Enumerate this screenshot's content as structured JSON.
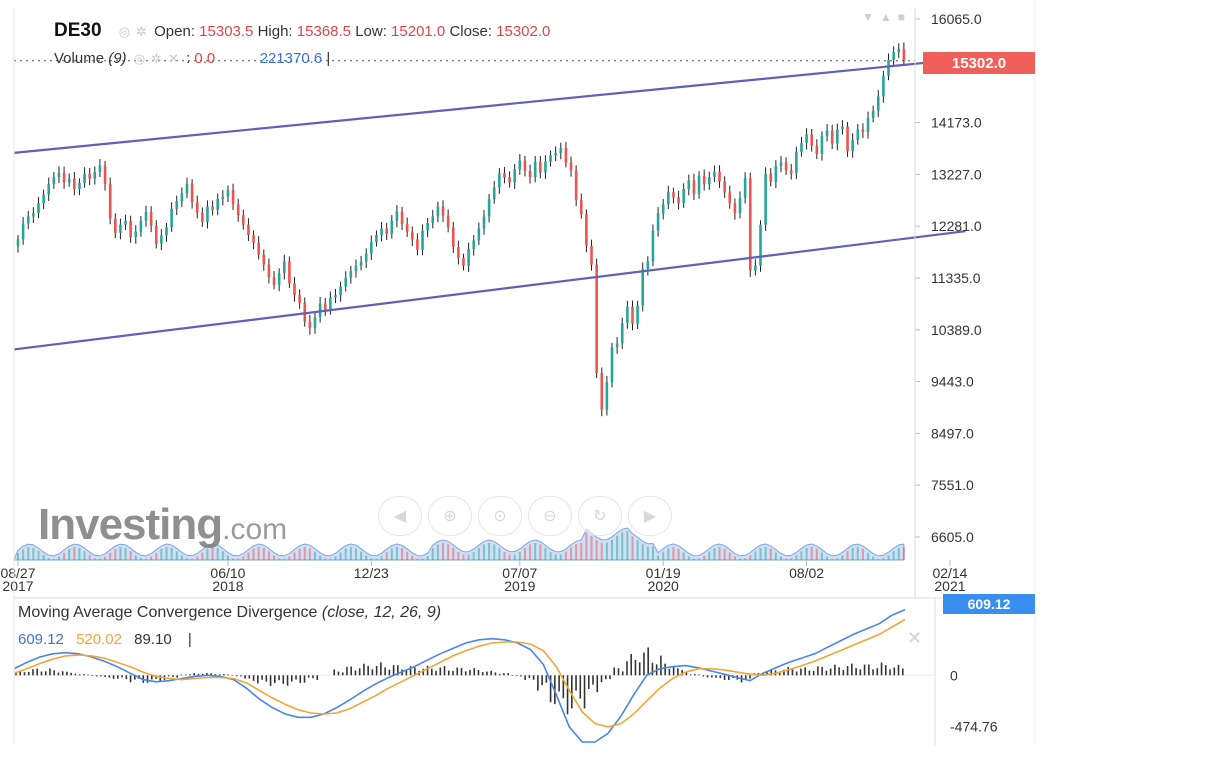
{
  "header": {
    "symbol": "DE30",
    "open_label": "Open:",
    "open": "15303.5",
    "high_label": "High:",
    "high": "15368.5",
    "low_label": "Low:",
    "low": "15201.0",
    "close_label": "Close:",
    "close": "15302.0",
    "volume_label": "Volume",
    "volume_period": "(9)",
    "volume_value": "0.0",
    "volume_ma": "221370.6"
  },
  "watermark": {
    "text": "Investing",
    "suffix": ".com"
  },
  "last_price_tag": "15302.0",
  "macd": {
    "legend_name": "Moving Average Convergence Divergence",
    "legend_params": "(close, 12, 26, 9)",
    "macd_value": "609.12",
    "signal_value": "520.02",
    "hist_value": "89.10",
    "tag": "609.12",
    "axis_ticks": [
      "0",
      "-474.76"
    ]
  },
  "colors": {
    "up": "#26a69a",
    "down": "#ef5350",
    "wick": "#222222",
    "channel": "#6060b8",
    "macd_line": "#4a86e8",
    "signal_line": "#f2a53a",
    "volume_area": "#a8c4ec",
    "price_tag": "#f0605a",
    "macd_tag": "#3a8ef0"
  },
  "toolbar_icons": [
    "arrow-left-icon",
    "zoom-in-icon",
    "zoom-reset-icon",
    "zoom-out-icon",
    "refresh-icon",
    "arrow-right-icon"
  ],
  "chart_data": [
    {
      "type": "candlestick",
      "title": "DE30",
      "y_ticks": [
        16065.0,
        14173.0,
        13227.0,
        12281.0,
        11335.0,
        10389.0,
        9443.0,
        8497.0,
        7551.0,
        6605.0
      ],
      "y_tick_labels": [
        "16065.0",
        "14173.0",
        "13227.0",
        "12281.0",
        "11335.0",
        "10389.0",
        "9443.0",
        "8497.0",
        "7551.0",
        "6605.0"
      ],
      "ylim": [
        5900,
        16400
      ],
      "x_tick_labels": [
        {
          "line1": "08/27",
          "line2": "2017",
          "i": 0
        },
        {
          "line1": "06/10",
          "line2": "2018",
          "i": 41
        },
        {
          "line1": "12/23",
          "line2": "",
          "i": 69
        },
        {
          "line1": "07/07",
          "line2": "2019",
          "i": 98
        },
        {
          "line1": "01/19",
          "line2": "2020",
          "i": 126
        },
        {
          "line1": "08/02",
          "line2": "",
          "i": 154
        },
        {
          "line1": "02/14",
          "line2": "2021",
          "i": 182
        }
      ],
      "closes": [
        12040,
        12330,
        12460,
        12520,
        12700,
        12860,
        13050,
        13180,
        13260,
        13080,
        13150,
        12960,
        13070,
        13240,
        13150,
        13270,
        13390,
        13050,
        12420,
        12160,
        12310,
        12380,
        12080,
        12180,
        12380,
        12540,
        12290,
        11960,
        12110,
        12260,
        12600,
        12740,
        12880,
        13050,
        12720,
        12530,
        12360,
        12640,
        12580,
        12780,
        12820,
        12940,
        12680,
        12480,
        12310,
        12120,
        11980,
        11760,
        11580,
        11350,
        11210,
        11420,
        11640,
        11240,
        11020,
        10880,
        10540,
        10420,
        10620,
        10870,
        10760,
        10980,
        11020,
        11180,
        11340,
        11460,
        11560,
        11630,
        11780,
        11990,
        12120,
        12240,
        12140,
        12380,
        12550,
        12320,
        12180,
        12040,
        11850,
        12200,
        12340,
        12460,
        12640,
        12480,
        12260,
        11900,
        11700,
        11560,
        11860,
        12020,
        12240,
        12460,
        12780,
        12990,
        13250,
        13170,
        13080,
        13320,
        13480,
        13290,
        13180,
        13460,
        13260,
        13460,
        13580,
        13620,
        13710,
        13440,
        13300,
        12760,
        12500,
        11920,
        11580,
        9600,
        8930,
        9430,
        10070,
        10140,
        10510,
        10810,
        10500,
        10830,
        11500,
        11640,
        12200,
        12520,
        12680,
        12900,
        12810,
        12700,
        12960,
        13120,
        12870,
        13200,
        13050,
        13180,
        13280,
        13100,
        12900,
        12700,
        12520,
        12800,
        13160,
        11470,
        11560,
        12310,
        13240,
        13090,
        13380,
        13450,
        13300,
        13250,
        13640,
        13800,
        13960,
        13750,
        13600,
        13930,
        14030,
        13790,
        14050,
        14100,
        13650,
        13860,
        14050,
        14000,
        14260,
        14390,
        14650,
        15030,
        15320,
        15460,
        15520,
        15302
      ],
      "channel_upper": {
        "from": {
          "i": 0,
          "price": 13620
        },
        "to": {
          "i": 194,
          "price": 15420
        }
      },
      "channel_lower": {
        "from": {
          "i": 0,
          "price": 10030
        },
        "to": {
          "i": 185,
          "price": 12190
        }
      },
      "last_price": 15302.0
    },
    {
      "type": "line",
      "title": "Moving Average Convergence Divergence",
      "series": [
        {
          "name": "MACD",
          "values": [
            60,
            120,
            170,
            200,
            210,
            200,
            170,
            130,
            80,
            20,
            -40,
            -60,
            -50,
            -30,
            -10,
            0,
            -10,
            -40,
            -120,
            -220,
            -300,
            -360,
            -390,
            -390,
            -360,
            -300,
            -230,
            -150,
            -80,
            -20,
            30,
            80,
            140,
            200,
            250,
            300,
            330,
            340,
            330,
            300,
            240,
            100,
            -180,
            -480,
            -620,
            -620,
            -540,
            -380,
            -180,
            0,
            60,
            80,
            90,
            70,
            40,
            10,
            -20,
            -50,
            20,
            70,
            120,
            160,
            200,
            260,
            320,
            380,
            430,
            480,
            560,
            609
          ]
        },
        {
          "name": "Signal",
          "values": [
            20,
            60,
            110,
            150,
            180,
            190,
            180,
            160,
            120,
            80,
            30,
            -10,
            -30,
            -40,
            -30,
            -20,
            -20,
            -30,
            -70,
            -140,
            -210,
            -270,
            -320,
            -350,
            -360,
            -350,
            -310,
            -250,
            -190,
            -120,
            -60,
            0,
            60,
            120,
            180,
            230,
            270,
            300,
            310,
            310,
            290,
            230,
            80,
            -140,
            -340,
            -450,
            -480,
            -450,
            -360,
            -240,
            -120,
            -30,
            30,
            60,
            60,
            50,
            30,
            10,
            0,
            20,
            50,
            90,
            130,
            180,
            230,
            280,
            330,
            380,
            450,
            520
          ]
        }
      ],
      "histogram": [
        40,
        60,
        60,
        50,
        30,
        10,
        -10,
        -30,
        -40,
        -60,
        -70,
        -50,
        -20,
        10,
        20,
        20,
        10,
        -10,
        -50,
        -80,
        -90,
        -90,
        -70,
        -40,
        0,
        50,
        80,
        100,
        110,
        100,
        90,
        80,
        80,
        80,
        70,
        70,
        60,
        40,
        20,
        -10,
        -50,
        -130,
        -260,
        -340,
        -280,
        -170,
        -60,
        70,
        180,
        240,
        180,
        110,
        60,
        10,
        -20,
        -40,
        -50,
        -60,
        20,
        50,
        70,
        70,
        70,
        80,
        90,
        100,
        100,
        100,
        110,
        89
      ],
      "ylim": [
        -620,
        700
      ]
    }
  ]
}
